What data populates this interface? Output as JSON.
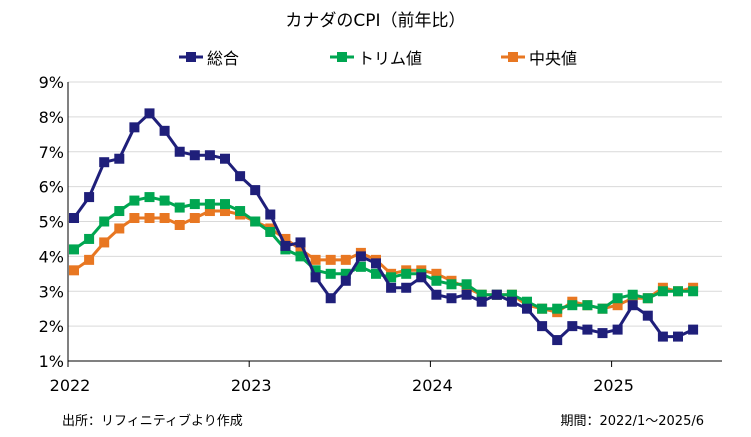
{
  "title": "カナダのCPI（前年比）",
  "footer": {
    "source": "出所：リフィニティブより作成",
    "period": "期間：2022/1～2025/6"
  },
  "chart_data": {
    "type": "line",
    "title": "カナダのCPI（前年比）",
    "x_start": "2022-01",
    "x_labels": [
      "2022",
      "2023",
      "2024",
      "2025"
    ],
    "ylim": [
      1,
      9
    ],
    "yticks": [
      1,
      2,
      3,
      4,
      5,
      6,
      7,
      8,
      9
    ],
    "ytick_labels": [
      "1%",
      "2%",
      "3%",
      "4%",
      "5%",
      "6%",
      "7%",
      "8%",
      "9%"
    ],
    "grid": "horizontal",
    "legend_position": "top",
    "series": [
      {
        "name": "総合",
        "color": "#1f1f7a",
        "values": [
          5.1,
          5.7,
          6.7,
          6.8,
          7.7,
          8.1,
          7.6,
          7.0,
          6.9,
          6.9,
          6.8,
          6.3,
          5.9,
          5.2,
          4.3,
          4.4,
          3.4,
          2.8,
          3.3,
          4.0,
          3.8,
          3.1,
          3.1,
          3.4,
          2.9,
          2.8,
          2.9,
          2.7,
          2.9,
          2.7,
          2.5,
          2.0,
          1.6,
          2.0,
          1.9,
          1.8,
          1.9,
          2.6,
          2.3,
          1.7,
          1.7,
          1.9
        ]
      },
      {
        "name": "トリム値",
        "color": "#00a651",
        "values": [
          4.2,
          4.5,
          5.0,
          5.3,
          5.6,
          5.7,
          5.6,
          5.4,
          5.5,
          5.5,
          5.5,
          5.3,
          5.0,
          4.7,
          4.2,
          4.0,
          3.6,
          3.5,
          3.5,
          3.7,
          3.5,
          3.4,
          3.5,
          3.5,
          3.3,
          3.2,
          3.2,
          2.9,
          2.9,
          2.9,
          2.7,
          2.5,
          2.5,
          2.6,
          2.6,
          2.5,
          2.8,
          2.9,
          2.8,
          3.0,
          3.0,
          3.0
        ]
      },
      {
        "name": "中央値",
        "color": "#e87722",
        "values": [
          3.6,
          3.9,
          4.4,
          4.8,
          5.1,
          5.1,
          5.1,
          4.9,
          5.1,
          5.3,
          5.3,
          5.2,
          5.0,
          4.8,
          4.5,
          4.2,
          3.9,
          3.9,
          3.9,
          4.1,
          3.9,
          3.5,
          3.6,
          3.6,
          3.5,
          3.3,
          3.1,
          2.9,
          2.9,
          2.9,
          2.6,
          2.5,
          2.4,
          2.7,
          2.6,
          2.5,
          2.6,
          2.8,
          2.8,
          3.1,
          3.0,
          3.1
        ]
      }
    ]
  }
}
